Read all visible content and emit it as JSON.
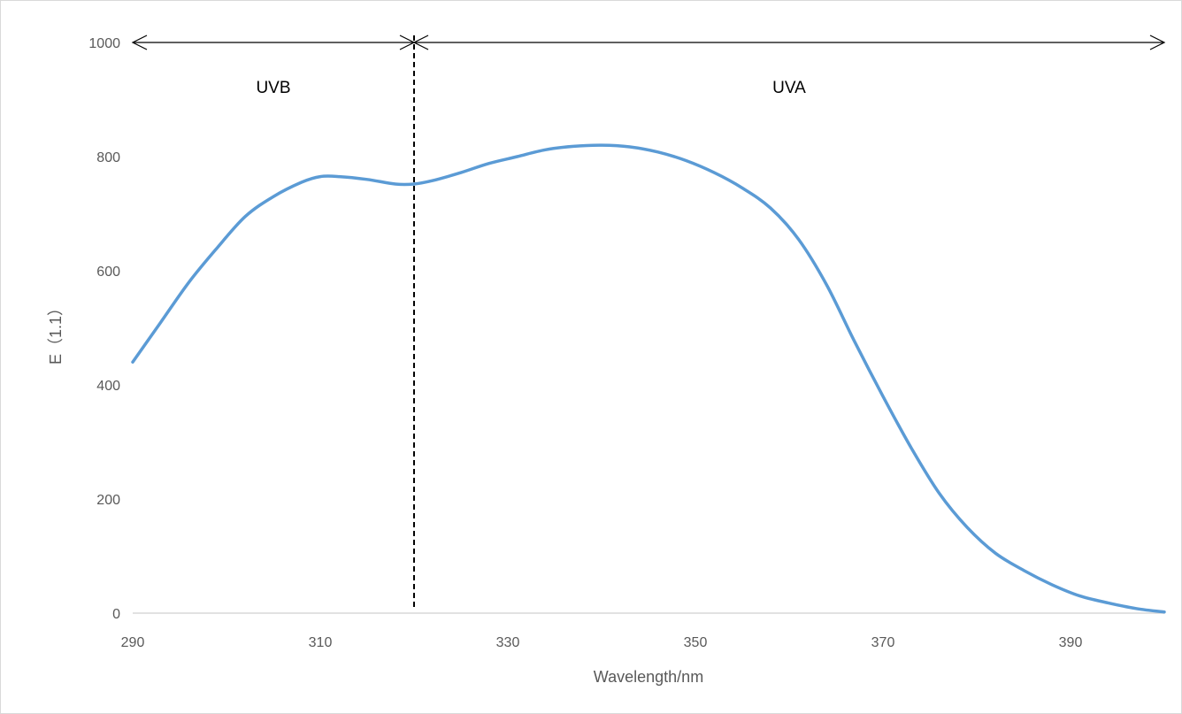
{
  "chart_data": {
    "type": "line",
    "title": "",
    "xlabel": "Wavelength/nm",
    "ylabel": "E（1.1）",
    "xlim": [
      290,
      400
    ],
    "ylim": [
      0,
      1000
    ],
    "x_ticks": [
      "290",
      "310",
      "330",
      "350",
      "370",
      "390"
    ],
    "y_ticks": [
      "0",
      "200",
      "400",
      "600",
      "800",
      "1000"
    ],
    "grid": false,
    "legend": "none",
    "line_color": "#5b9bd5",
    "series": [
      {
        "x": [
          290,
          293,
          296,
          299,
          302,
          305,
          308,
          310,
          312,
          315,
          318,
          320,
          322,
          325,
          328,
          331,
          334,
          337,
          340,
          343,
          346,
          349,
          352,
          355,
          358,
          361,
          364,
          367,
          370,
          373,
          376,
          379,
          382,
          385,
          388,
          391,
          394,
          397,
          400
        ],
        "y": [
          440,
          510,
          580,
          640,
          695,
          730,
          755,
          765,
          765,
          760,
          752,
          752,
          758,
          772,
          788,
          800,
          812,
          818,
          820,
          817,
          808,
          793,
          772,
          745,
          710,
          655,
          575,
          475,
          380,
          290,
          210,
          150,
          105,
          75,
          50,
          30,
          18,
          8,
          2
        ]
      }
    ],
    "annotations": {
      "divider_x": 320,
      "regions": [
        {
          "label": "UVB",
          "from": 290,
          "to": 320
        },
        {
          "label": "UVA",
          "from": 320,
          "to": 400
        }
      ]
    }
  }
}
